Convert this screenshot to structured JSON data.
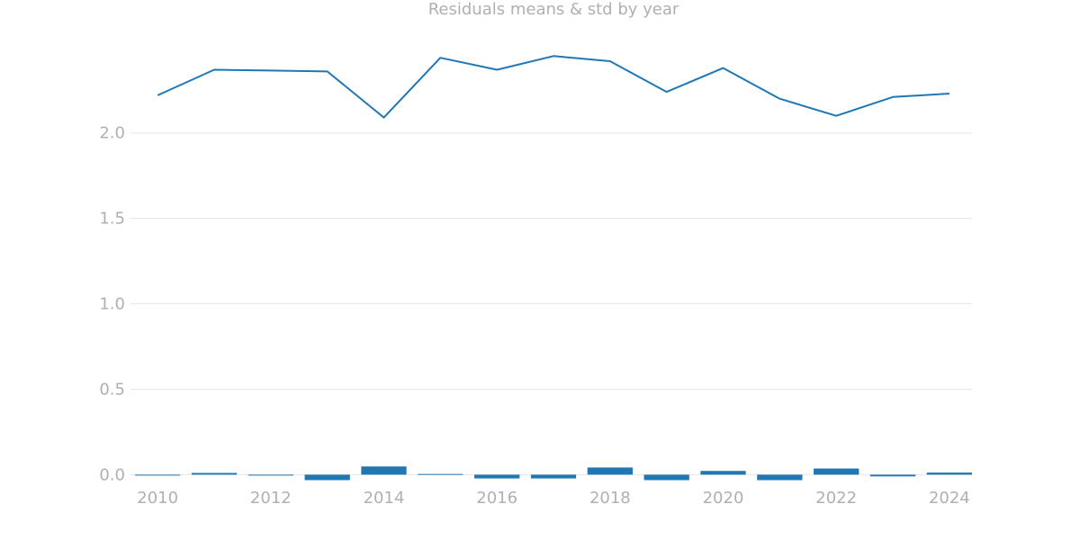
{
  "chart_data": {
    "type": "bar+line",
    "title": "Residuals means & std by year",
    "xlabel": "",
    "ylabel": "",
    "x": [
      2010,
      2011,
      2012,
      2013,
      2014,
      2015,
      2016,
      2017,
      2018,
      2019,
      2020,
      2021,
      2022,
      2023,
      2024
    ],
    "series": [
      {
        "kind": "bar",
        "values": [
          -0.004,
          0.01,
          0.0,
          -0.032,
          0.048,
          0.004,
          -0.022,
          -0.022,
          0.042,
          -0.032,
          0.022,
          -0.032,
          0.036,
          -0.01,
          0.012
        ]
      },
      {
        "kind": "line",
        "values": [
          2.22,
          2.37,
          2.365,
          2.36,
          2.09,
          2.44,
          2.37,
          2.45,
          2.42,
          2.24,
          2.38,
          2.2,
          2.1,
          2.21,
          2.23
        ]
      }
    ],
    "xlim": [
      2009.52,
      2024.4
    ],
    "ylim": [
      -0.04,
      2.62
    ],
    "xticks": [
      "2010",
      "2012",
      "2014",
      "2016",
      "2018",
      "2020",
      "2022",
      "2024"
    ],
    "yticks": [
      "0.0",
      "0.5",
      "1.0",
      "1.5",
      "2.0"
    ],
    "grid": "horizontal",
    "colors": {
      "series": "#1f77b4",
      "text": "#b0b0b0",
      "grid": "#e6e6e6"
    }
  }
}
